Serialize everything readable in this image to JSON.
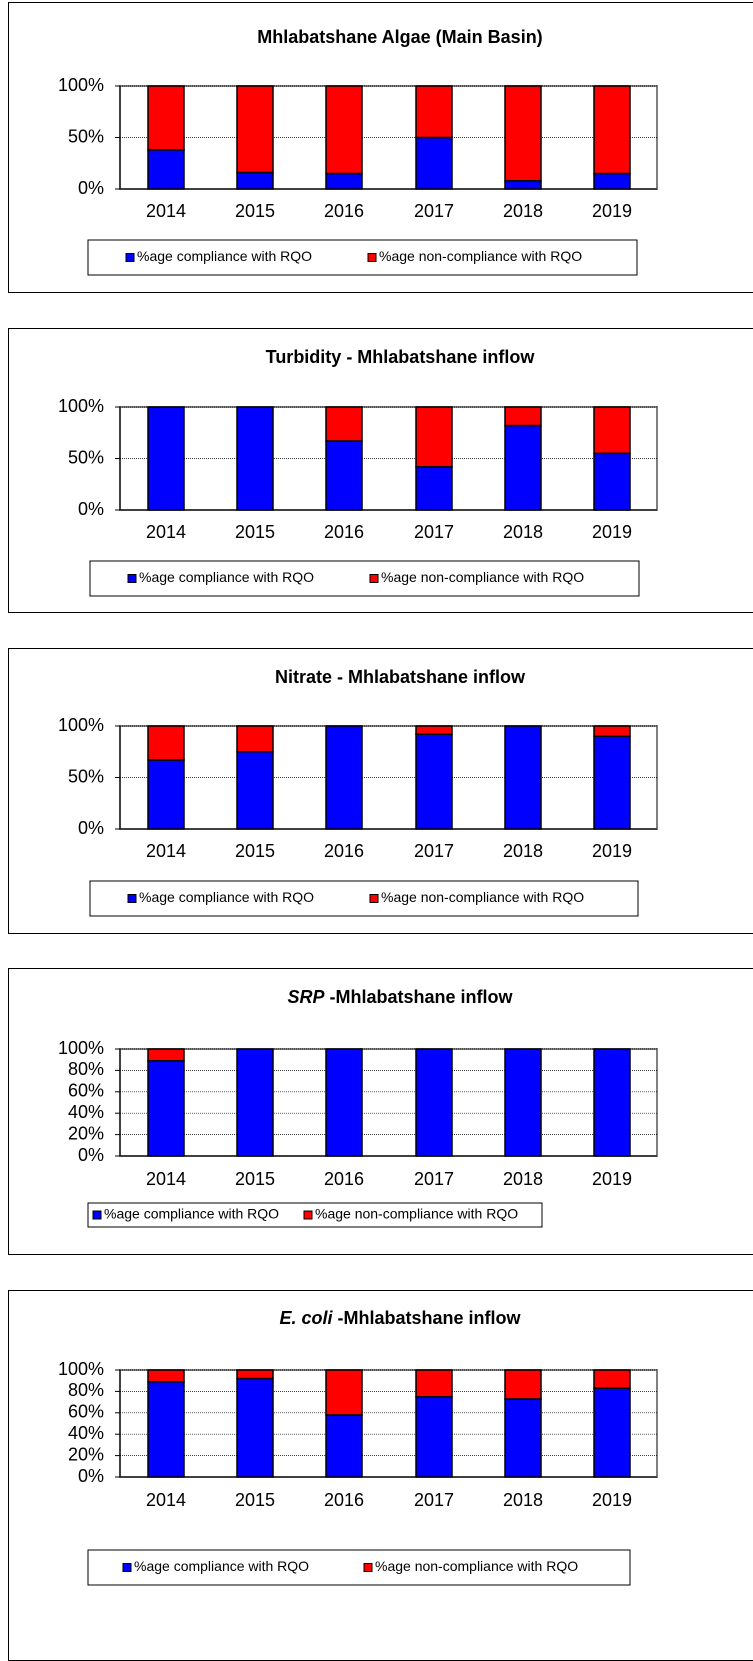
{
  "chart_data": [
    {
      "type": "stacked_bar",
      "title": "Mhlabatshane Algae (Main Basin)",
      "categories": [
        "2014",
        "2015",
        "2016",
        "2017",
        "2018",
        "2019"
      ],
      "series": [
        {
          "name": "%age compliance with RQO",
          "color": "#0000ff",
          "values": [
            38,
            16,
            15,
            50,
            8,
            15
          ]
        },
        {
          "name": "%age non-compliance with RQO",
          "color": "#ff0000",
          "values": [
            62,
            84,
            85,
            50,
            92,
            85
          ]
        }
      ],
      "ylim": [
        0,
        100
      ],
      "yticks": [
        {
          "value": 0,
          "label": "0%"
        },
        {
          "value": 50,
          "label": "50%"
        },
        {
          "value": 100,
          "label": "100%"
        }
      ],
      "grid": true,
      "legend": "bottom"
    },
    {
      "type": "stacked_bar",
      "title": "Turbidity - Mhlabatshane inflow",
      "categories": [
        "2014",
        "2015",
        "2016",
        "2017",
        "2018",
        "2019"
      ],
      "series": [
        {
          "name": "%age compliance with RQO",
          "color": "#0000ff",
          "values": [
            100,
            100,
            67,
            42,
            82,
            55
          ]
        },
        {
          "name": "%age non-compliance with RQO",
          "color": "#ff0000",
          "values": [
            0,
            0,
            33,
            58,
            18,
            45
          ]
        }
      ],
      "ylim": [
        0,
        100
      ],
      "yticks": [
        {
          "value": 0,
          "label": "0%"
        },
        {
          "value": 50,
          "label": "50%"
        },
        {
          "value": 100,
          "label": "100%"
        }
      ],
      "grid": true,
      "legend": "bottom"
    },
    {
      "type": "stacked_bar",
      "title": "Nitrate - Mhlabatshane inflow",
      "categories": [
        "2014",
        "2015",
        "2016",
        "2017",
        "2018",
        "2019"
      ],
      "series": [
        {
          "name": "%age compliance with RQO",
          "color": "#0000ff",
          "values": [
            67,
            75,
            100,
            92,
            100,
            90
          ]
        },
        {
          "name": "%age non-compliance with RQO",
          "color": "#ff0000",
          "values": [
            33,
            25,
            0,
            8,
            0,
            10
          ]
        }
      ],
      "ylim": [
        0,
        100
      ],
      "yticks": [
        {
          "value": 0,
          "label": "0%"
        },
        {
          "value": 50,
          "label": "50%"
        },
        {
          "value": 100,
          "label": "100%"
        }
      ],
      "grid": true,
      "legend": "bottom"
    },
    {
      "type": "stacked_bar",
      "title_italic": "SRP",
      "title": "-Mhlabatshane inflow",
      "categories": [
        "2014",
        "2015",
        "2016",
        "2017",
        "2018",
        "2019"
      ],
      "series": [
        {
          "name": "%age compliance with RQO",
          "color": "#0000ff",
          "values": [
            89,
            100,
            100,
            100,
            100,
            100
          ]
        },
        {
          "name": "%age non-compliance with RQO",
          "color": "#ff0000",
          "values": [
            11,
            0,
            0,
            0,
            0,
            0
          ]
        }
      ],
      "ylim": [
        0,
        100
      ],
      "yticks": [
        {
          "value": 0,
          "label": "0%"
        },
        {
          "value": 20,
          "label": "20%"
        },
        {
          "value": 40,
          "label": "40%"
        },
        {
          "value": 60,
          "label": "60%"
        },
        {
          "value": 80,
          "label": "80%"
        },
        {
          "value": 100,
          "label": "100%"
        }
      ],
      "grid": true,
      "legend": "bottom"
    },
    {
      "type": "stacked_bar",
      "title_italic": "E. coli",
      "title": "-Mhlabatshane inflow",
      "categories": [
        "2014",
        "2015",
        "2016",
        "2017",
        "2018",
        "2019"
      ],
      "series": [
        {
          "name": "%age compliance with RQO",
          "color": "#0000ff",
          "values": [
            89,
            92,
            58,
            75,
            73,
            83
          ]
        },
        {
          "name": "%age non-compliance with RQO",
          "color": "#ff0000",
          "values": [
            11,
            8,
            42,
            25,
            27,
            17
          ]
        }
      ],
      "ylim": [
        0,
        100
      ],
      "yticks": [
        {
          "value": 0,
          "label": "0%"
        },
        {
          "value": 20,
          "label": "20%"
        },
        {
          "value": 40,
          "label": "40%"
        },
        {
          "value": 60,
          "label": "60%"
        },
        {
          "value": 80,
          "label": "80%"
        },
        {
          "value": 100,
          "label": "100%"
        }
      ],
      "grid": true,
      "legend": "bottom"
    }
  ]
}
